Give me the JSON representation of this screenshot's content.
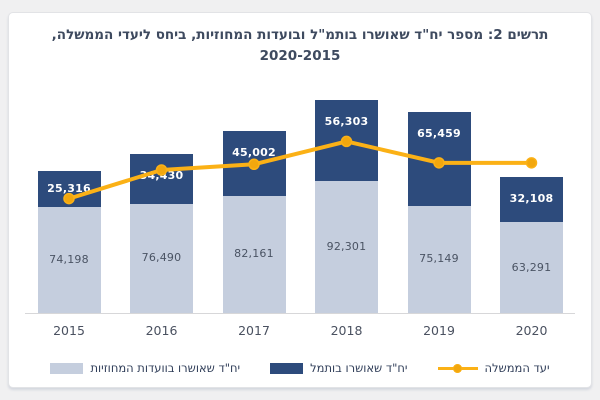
{
  "title": {
    "line1": "תרשים 2: מספר יח\"ד שאושרו בותמ\"ל ובועדות המחוזיות, ביחס ליעדי הממשלה,",
    "line2": "2020-2015"
  },
  "chart_data": {
    "type": "bar",
    "subtype": "stacked-bars-with-target-line",
    "title": "תרשים 2: מספר יח\"ד שאושרו בותמ\"ל ובועדות המחוזיות, ביחס ליעדי הממשלה, 2020-2015",
    "categories": [
      "2015",
      "2016",
      "2017",
      "2018",
      "2019",
      "2020"
    ],
    "series": [
      {
        "name": "יח\"ד שאושרו בוועדות המחוזיות",
        "type": "bar",
        "stack_position": "bottom",
        "color": "#c5cede",
        "label_color": "#4a5363",
        "values": [
          74198,
          76490,
          82161,
          92301,
          75149,
          63291
        ],
        "labels": [
          "74,198",
          "76,490",
          "82,161",
          "92,301",
          "75,149",
          "63,291"
        ]
      },
      {
        "name": "יח\"ד שאושרו בותמל",
        "type": "bar",
        "stack_position": "top",
        "color": "#2d4b7c",
        "label_color": "#ffffff",
        "values": [
          25316,
          34430,
          45002,
          56303,
          65459,
          32108
        ],
        "labels": [
          "25,316",
          "34,430",
          "45,002",
          "56,303",
          "65,459",
          "32,108"
        ]
      },
      {
        "name": "יעד הממשלה",
        "type": "line",
        "color": "#fbb116",
        "dot_color": "#f2a70e",
        "estimated": true,
        "values": [
          80000,
          100000,
          104000,
          120000,
          105000,
          105000
        ]
      }
    ],
    "legend_position": "bottom",
    "gridlines": false,
    "y_axis": "hidden",
    "ylim": [
      0,
      160000
    ]
  }
}
